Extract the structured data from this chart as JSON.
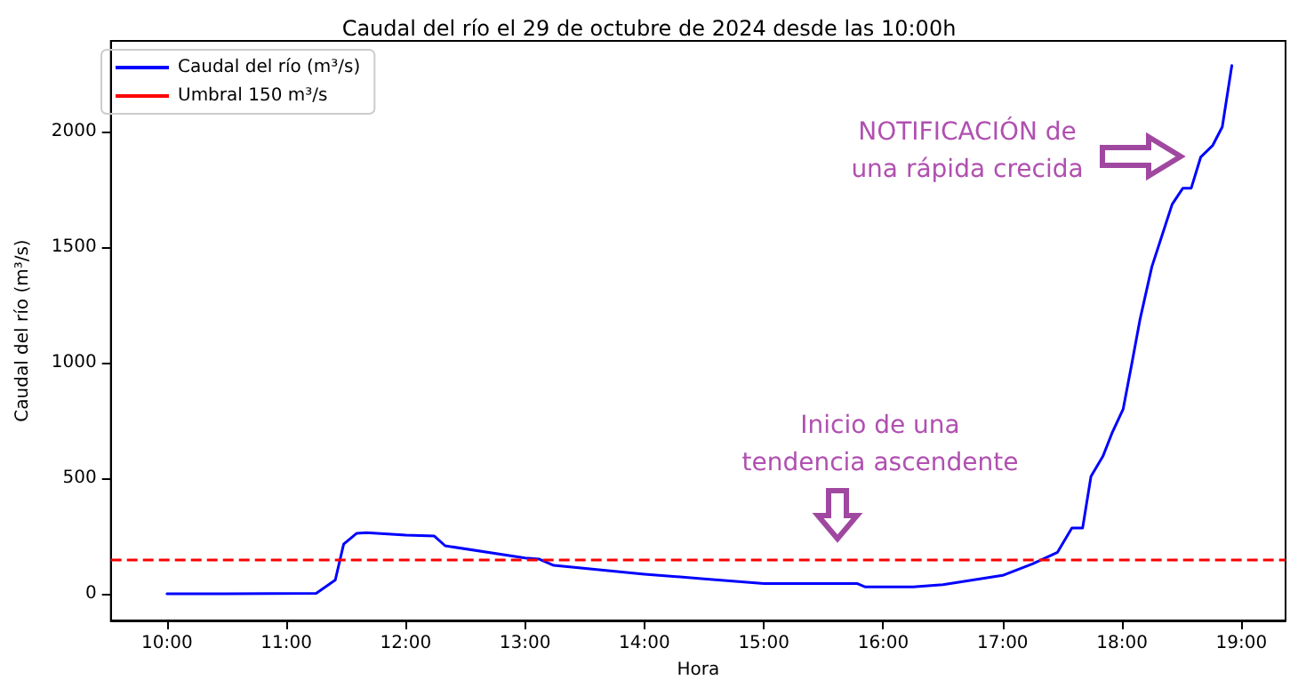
{
  "chart_data": {
    "type": "line",
    "title": "Caudal del río el 29 de octubre de 2024 desde las 10:00h",
    "xlabel": "Hora",
    "ylabel": "Caudal del río (m³/s)",
    "x": [
      10,
      11.25,
      11.41,
      11.48,
      11.59,
      11.67,
      12.0,
      12.24,
      12.33,
      13.0,
      13.12,
      13.24,
      14.0,
      14.5,
      15.0,
      15.78,
      15.85,
      16.25,
      16.5,
      17.0,
      17.25,
      17.46,
      17.58,
      17.67,
      17.74,
      17.84,
      17.92,
      18.01,
      18.08,
      18.15,
      18.25,
      18.42,
      18.51,
      18.58,
      18.66,
      18.76,
      18.84,
      18.92
    ],
    "series": [
      {
        "name": "Caudal del río (m³/s)",
        "color": "#0000ff",
        "values": [
          0,
          2,
          60,
          215,
          262,
          265,
          254,
          250,
          208,
          155,
          150,
          123,
          85,
          65,
          45,
          45,
          30,
          30,
          40,
          80,
          130,
          180,
          285,
          285,
          508,
          595,
          700,
          800,
          990,
          1185,
          1415,
          1685,
          1755,
          1755,
          1890,
          1940,
          2020,
          2285
        ]
      }
    ],
    "xlim": [
      9.53,
      19.37
    ],
    "ylim": [
      -115,
      2392
    ],
    "xticks": [
      {
        "value": 10,
        "label": "10:00"
      },
      {
        "value": 11,
        "label": "11:00"
      },
      {
        "value": 12,
        "label": "12:00"
      },
      {
        "value": 13,
        "label": "13:00"
      },
      {
        "value": 14,
        "label": "14:00"
      },
      {
        "value": 15,
        "label": "15:00"
      },
      {
        "value": 16,
        "label": "16:00"
      },
      {
        "value": 17,
        "label": "17:00"
      },
      {
        "value": 18,
        "label": "18:00"
      },
      {
        "value": 19,
        "label": "19:00"
      }
    ],
    "yticks": [
      0,
      500,
      1000,
      1500,
      2000
    ],
    "ref_lines": [
      {
        "axis": "y",
        "value": 150,
        "label": "Umbral 150 m³/s",
        "color": "#ff0000",
        "line_style": "dashed"
      }
    ],
    "annotations": [
      "NOTIFICACIÓN de\nuna rápida crecida",
      "Inicio de una\ntendencia ascendente"
    ],
    "grid": false,
    "legend": "top left",
    "marker": "none",
    "line_style": "solid"
  }
}
